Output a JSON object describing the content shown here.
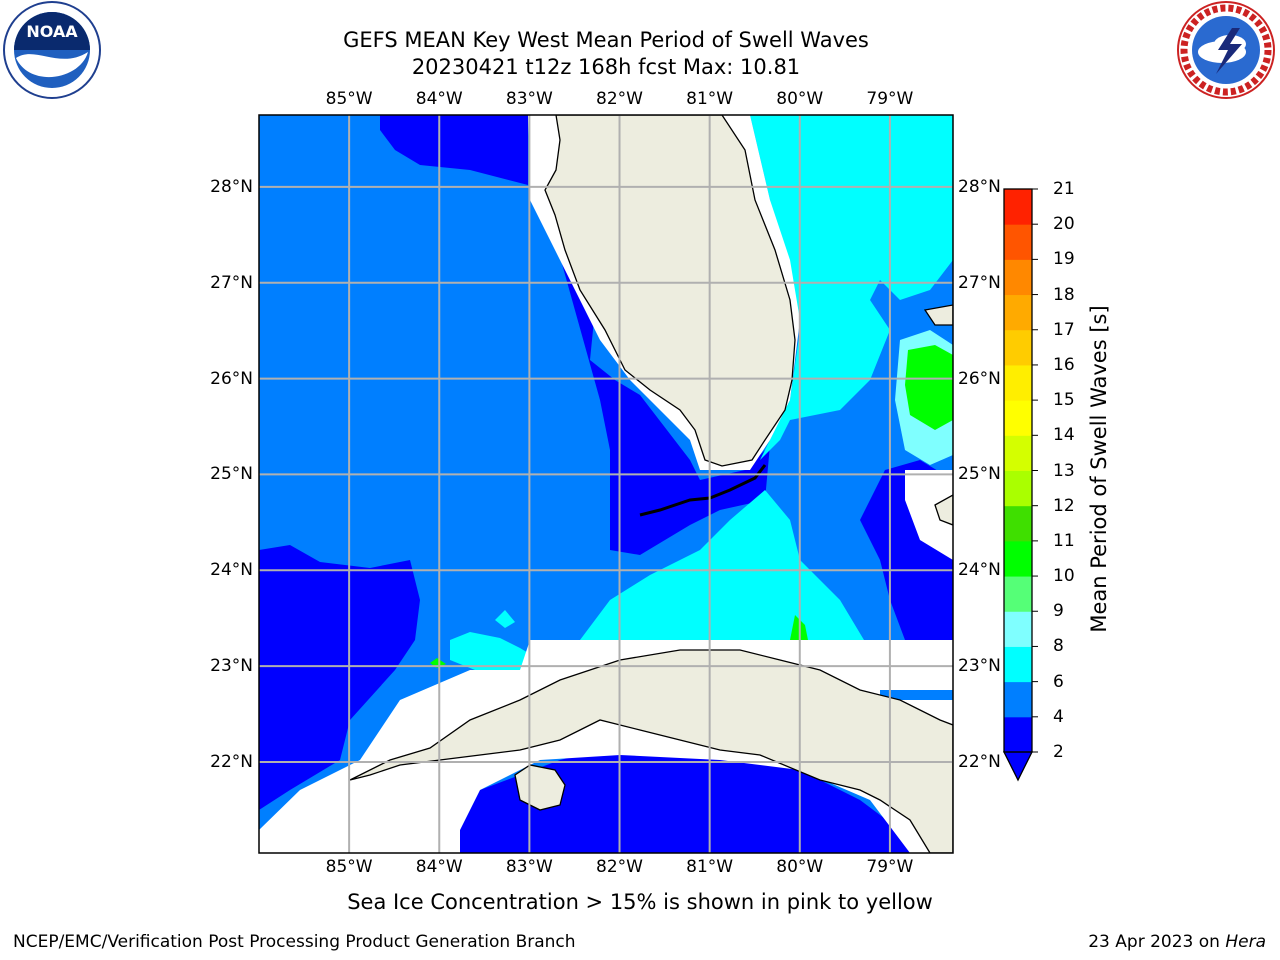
{
  "header": {
    "title_line1": "GEFS MEAN Key West Mean Period of Swell Waves",
    "title_line2": "20230421 t12z 168h fcst   Max: 10.81",
    "left_logo_text": "NOAA",
    "left_logo_ring_text": "NATIONAL OCEANIC AND ATMOSPHERIC ADMINISTRATION · U.S. DEPARTMENT OF COMMERCE",
    "right_logo_ring_text": "NATIONAL WEATHER SERVICE"
  },
  "map": {
    "lon_labels": [
      "85°W",
      "84°W",
      "83°W",
      "82°W",
      "81°W",
      "80°W",
      "79°W"
    ],
    "lat_labels": [
      "28°N",
      "27°N",
      "26°N",
      "25°N",
      "24°N",
      "23°N",
      "22°N"
    ],
    "lon_range": [
      -86.0,
      -78.3
    ],
    "lat_range": [
      21.05,
      28.75
    ],
    "colors": {
      "land": "#ededdf",
      "c2_4": "#0000ff",
      "c4_6": "#007fff",
      "c6_8": "#00ffff",
      "c8_9": "#7fffff",
      "c9_11": "#00ff00",
      "grid": "#b0b0b0"
    }
  },
  "colorbar": {
    "label": "Mean Period of Swell Waves [s]",
    "ticks": [
      "2",
      "4",
      "6",
      "8",
      "9",
      "10",
      "11",
      "12",
      "13",
      "14",
      "15",
      "16",
      "17",
      "18",
      "19",
      "20",
      "21"
    ],
    "colors": [
      "#0000ff",
      "#007fff",
      "#00ffff",
      "#7fffff",
      "#55ff77",
      "#00ff00",
      "#3fdf00",
      "#aaff00",
      "#d4ff00",
      "#ffff00",
      "#ffee00",
      "#ffcc00",
      "#ffaa00",
      "#ff8800",
      "#ff5500",
      "#ff2200"
    ]
  },
  "note": "Sea Ice Concentration > 15% is shown in pink to yellow",
  "footer": {
    "left": "NCEP/EMC/Verification Post Processing Product Generation Branch",
    "right_prefix": "23 Apr 2023 on ",
    "right_italic": "Hera"
  }
}
